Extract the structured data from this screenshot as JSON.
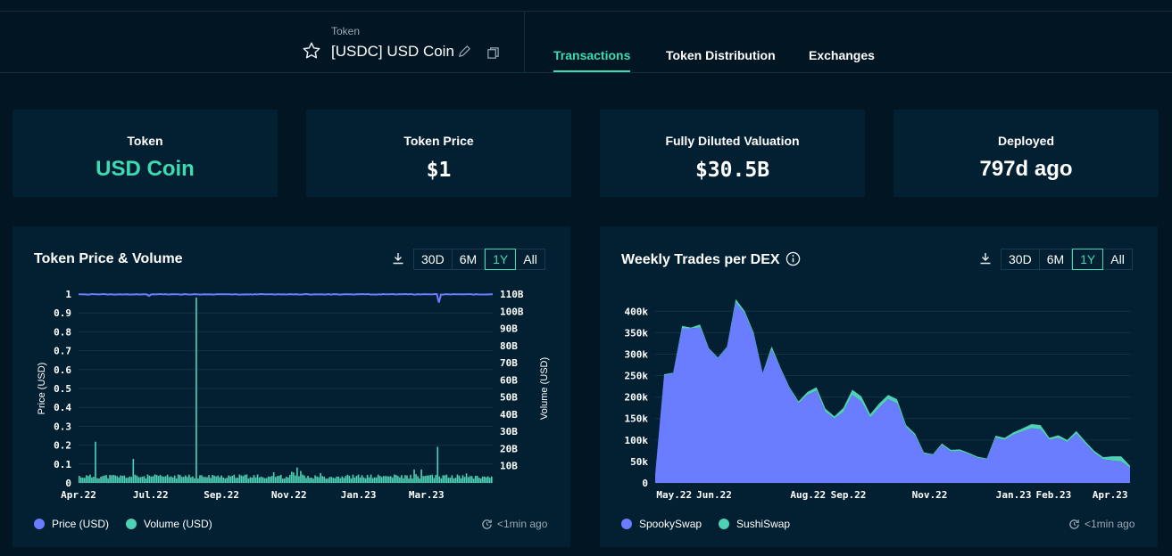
{
  "header": {
    "token_label": "Token",
    "token_name": "[USDC] USD Coin",
    "tabs": [
      "Transactions",
      "Token Distribution",
      "Exchanges"
    ],
    "active_tab": "Transactions"
  },
  "stats": [
    {
      "label": "Token",
      "value": "USD Coin"
    },
    {
      "label": "Token Price",
      "value": "$1"
    },
    {
      "label": "Fully Diluted Valuation",
      "value": "$30.5B"
    },
    {
      "label": "Deployed",
      "value": "797d ago"
    }
  ],
  "ranges": [
    "30D",
    "6M",
    "1Y",
    "All"
  ],
  "selected_range": "1Y",
  "colors": {
    "accent": "#3ddbb1",
    "price": "#6a7cff",
    "volume": "#4fd1b5",
    "spooky": "#6a7cff",
    "sushi": "#4fd1b5"
  },
  "left_panel": {
    "title": "Token Price & Volume",
    "legend": [
      "Price (USD)",
      "Volume (USD)"
    ],
    "updated": "<1min ago"
  },
  "right_panel": {
    "title": "Weekly Trades per DEX",
    "legend": [
      "SpookySwap",
      "SushiSwap"
    ],
    "updated": "<1min ago"
  },
  "chart_data": [
    {
      "type": "line",
      "title": "Token Price & Volume",
      "ylabel": "Price (USD)",
      "y2label": "Volume (USD)",
      "ylim": [
        0,
        1
      ],
      "y2lim": [
        0,
        110
      ],
      "y_ticks": [
        "0",
        "0.1",
        "0.2",
        "0.3",
        "0.4",
        "0.5",
        "0.6",
        "0.7",
        "0.8",
        "0.9",
        "1"
      ],
      "y2_ticks": [
        "10B",
        "20B",
        "30B",
        "40B",
        "50B",
        "60B",
        "70B",
        "80B",
        "90B",
        "100B",
        "110B"
      ],
      "x_ticks": [
        {
          "label": "Apr.22",
          "pos": 0.0
        },
        {
          "label": "Jul.22",
          "pos": 0.174
        },
        {
          "label": "Sep.22",
          "pos": 0.345
        },
        {
          "label": "Nov.22",
          "pos": 0.508
        },
        {
          "label": "Jan.23",
          "pos": 0.676
        },
        {
          "label": "Mar.23",
          "pos": 0.84
        }
      ],
      "price_series": {
        "name": "Price (USD)",
        "baseline": 1.0,
        "dips": [
          {
            "t": 0.17,
            "v": 0.99
          },
          {
            "t": 0.87,
            "v": 0.955
          }
        ]
      },
      "volume_series": {
        "name": "Volume (USD)",
        "typical_B": [
          2.5,
          5
        ],
        "spikes": [
          {
            "t": 0.04,
            "v_B": 24
          },
          {
            "t": 0.13,
            "v_B": 14
          },
          {
            "t": 0.285,
            "v_B": 108
          },
          {
            "t": 0.53,
            "v_B": 9
          },
          {
            "t": 0.87,
            "v_B": 21
          }
        ]
      }
    },
    {
      "type": "area",
      "title": "Weekly Trades per DEX",
      "ylim": [
        0,
        440000
      ],
      "y_ticks": [
        "0",
        "50k",
        "100k",
        "150k",
        "200k",
        "250k",
        "300k",
        "350k",
        "400k"
      ],
      "x_ticks": [
        {
          "label": "May.22",
          "pos": 0.04
        },
        {
          "label": "Jun.22",
          "pos": 0.124
        },
        {
          "label": "Aug.22",
          "pos": 0.322
        },
        {
          "label": "Sep.22",
          "pos": 0.407
        },
        {
          "label": "Nov.22",
          "pos": 0.578
        },
        {
          "label": "Jan.23",
          "pos": 0.755
        },
        {
          "label": "Feb.23",
          "pos": 0.839
        },
        {
          "label": "Apr.23",
          "pos": 0.958
        }
      ],
      "series": [
        {
          "name": "SpookySwap",
          "values": [
            20000,
            250000,
            255000,
            360000,
            360000,
            362000,
            312000,
            290000,
            315000,
            420000,
            395000,
            345000,
            255000,
            310000,
            265000,
            220000,
            185000,
            205000,
            215000,
            165000,
            150000,
            165000,
            205000,
            190000,
            152000,
            175000,
            195000,
            185000,
            130000,
            110000,
            68000,
            65000,
            88000,
            73000,
            74000,
            67000,
            58000,
            55000,
            105000,
            100000,
            112000,
            120000,
            127000,
            125000,
            100000,
            105000,
            95000,
            115000,
            92000,
            70000,
            55000,
            52000,
            50000,
            35000
          ]
        },
        {
          "name": "SushiSwap",
          "values": [
            0,
            3000,
            2000,
            6000,
            2000,
            7000,
            2000,
            2000,
            2000,
            8000,
            5000,
            5000,
            2000,
            8000,
            3000,
            3000,
            5000,
            7000,
            8000,
            8000,
            5000,
            10000,
            12000,
            12000,
            8000,
            10000,
            10000,
            10000,
            5000,
            5000,
            3000,
            2000,
            4000,
            4000,
            4000,
            3000,
            3000,
            2000,
            5000,
            5000,
            6000,
            7000,
            10000,
            10000,
            5000,
            6000,
            5000,
            6000,
            5000,
            5000,
            5000,
            10000,
            12000,
            5000
          ]
        }
      ]
    }
  ]
}
